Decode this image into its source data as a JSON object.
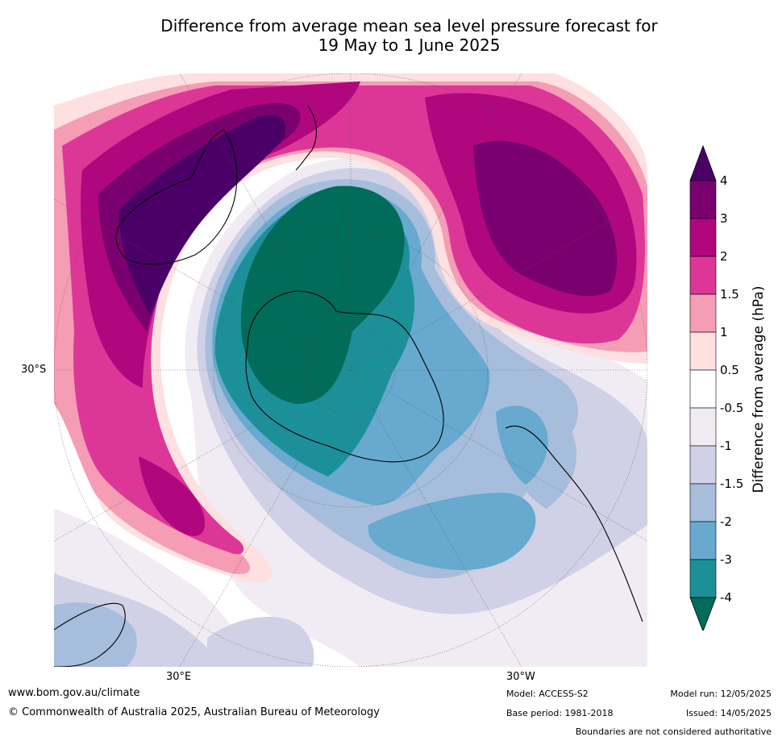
{
  "title": {
    "line1": "Difference from average mean sea level pressure forecast for",
    "line2": "19 May to 1 June 2025"
  },
  "map": {
    "projection": "south polar stereographic",
    "lat_label": "30°S",
    "lon_label_east": "30°E",
    "lon_label_west": "30°W"
  },
  "colorbar": {
    "label": "Difference from average (hPa)",
    "ticks": [
      "4",
      "3",
      "2",
      "1.5",
      "1",
      "0.5",
      "-0.5",
      "-1",
      "-1.5",
      "-2",
      "-3",
      "-4"
    ],
    "colors": {
      "gt4": "#4a0066",
      "3_4": "#7a0070",
      "2_3": "#b0067e",
      "1.5_2": "#dc3797",
      "1_1.5": "#f49db5",
      "0.5_1": "#fde0df",
      "-0.5_0.5": "#ffffff",
      "-1_-0.5": "#f1ecf4",
      "-1.5_-1": "#d0d1e6",
      "-2_-1.5": "#a6bddb",
      "-3_-2": "#67a9cf",
      "-4_-3": "#1c9099",
      "lt-4": "#016c59"
    }
  },
  "footer": {
    "website": "www.bom.gov.au/climate",
    "copyright": "© Commonwealth of Australia 2025, Australian Bureau of Meteorology",
    "model": "Model: ACCESS-S2",
    "base_period": "Base period: 1981-2018",
    "model_run": "Model run: 12/05/2025",
    "issued": "Issued: 14/05/2025",
    "disclaimer": "Boundaries are not considered authoritative"
  }
}
